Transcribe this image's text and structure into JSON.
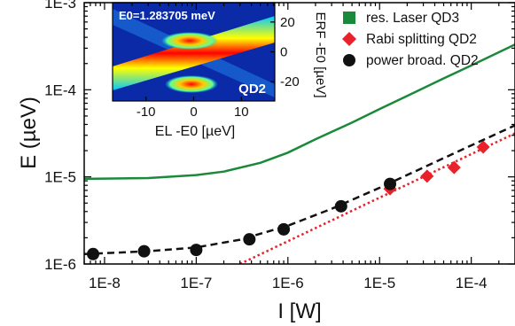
{
  "chart_data": {
    "type": "line",
    "xlabel": "I [W]",
    "ylabel": "E (µeV)",
    "x_scale": "log",
    "y_scale": "log",
    "xlim": [
      6e-09,
      0.0003
    ],
    "ylim": [
      1e-06,
      0.001
    ],
    "x_ticks": [
      1e-08,
      1e-07,
      1e-06,
      1e-05,
      0.0001
    ],
    "x_tick_labels": [
      "1E-8",
      "1E-7",
      "1E-6",
      "1E-5",
      "1E-4"
    ],
    "y_ticks": [
      1e-06,
      1e-05,
      0.0001,
      0.001
    ],
    "y_tick_labels": [
      "1E-6",
      "1E-5",
      "1E-4",
      "1E-3"
    ],
    "legend_position": "top-right",
    "series": [
      {
        "name": "res. Laser QD3",
        "kind": "line",
        "marker": "square",
        "color": "#1a8a3a",
        "points": [
          [
            6e-09,
            9.5e-06
          ],
          [
            1e-08,
            9.55e-06
          ],
          [
            3e-08,
            9.7e-06
          ],
          [
            1e-07,
            1.05e-05
          ],
          [
            2e-07,
            1.15e-05
          ],
          [
            5e-07,
            1.45e-05
          ],
          [
            1e-06,
            1.9e-05
          ],
          [
            2e-06,
            2.7e-05
          ],
          [
            5e-06,
            4.2e-05
          ],
          [
            1e-05,
            6e-05
          ],
          [
            2e-05,
            8.5e-05
          ],
          [
            5e-05,
            0.000135
          ],
          [
            0.0001,
            0.00019
          ],
          [
            0.0003,
            0.00033
          ]
        ]
      },
      {
        "name": "Rabi splitting QD2",
        "kind": "scatter",
        "marker": "diamond",
        "color": "#e8212a",
        "points": [
          [
            1.3e-05,
            7.3e-06
          ],
          [
            3.3e-05,
            1.02e-05
          ],
          [
            6.5e-05,
            1.28e-05
          ],
          [
            0.000135,
            2.2e-05
          ]
        ]
      },
      {
        "name": "power broad. QD2",
        "kind": "scatter",
        "marker": "circle",
        "color": "#111111",
        "points": [
          [
            7.5e-09,
            1.3e-06
          ],
          [
            2.7e-08,
            1.4e-06
          ],
          [
            1e-07,
            1.45e-06
          ],
          [
            3.8e-07,
            1.92e-06
          ],
          [
            9e-07,
            2.5e-06
          ],
          [
            3.8e-06,
            4.6e-06
          ],
          [
            1.3e-05,
            8.3e-06
          ]
        ]
      },
      {
        "name": "",
        "kind": "fit",
        "style": "dashed",
        "color": "#111111",
        "points": [
          [
            6e-09,
            1.3e-06
          ],
          [
            3e-08,
            1.4e-06
          ],
          [
            1e-07,
            1.55e-06
          ],
          [
            3e-07,
            1.9e-06
          ],
          [
            1e-06,
            2.75e-06
          ],
          [
            3e-06,
            4.3e-06
          ],
          [
            1e-05,
            7.5e-06
          ],
          [
            3e-05,
            1.28e-05
          ],
          [
            0.0001,
            2.3e-05
          ],
          [
            0.0003,
            3.9e-05
          ]
        ]
      },
      {
        "name": "",
        "kind": "fit",
        "style": "dotted",
        "color": "#e8212a",
        "points": [
          [
            3e-07,
            1e-06
          ],
          [
            0.0003,
            3.16e-05
          ]
        ]
      }
    ],
    "inset": {
      "type": "heatmap",
      "title": "E0=1.283705 meV",
      "label": "QD2",
      "xlabel": "EL -E0 [µeV]",
      "ylabel": "ERF -E0 [µeV]",
      "xlim": [
        -17,
        17
      ],
      "ylim": [
        -33,
        33
      ],
      "x_ticks": [
        -10,
        0,
        10
      ],
      "x_tick_labels": [
        "-10",
        "0",
        "10"
      ],
      "y_ticks": [
        20,
        0,
        -20
      ],
      "y_tick_labels": [
        "20",
        "0",
        "-20"
      ],
      "colormap": [
        "#000080",
        "#0050ff",
        "#00c8ff",
        "#60ff90",
        "#ffff00",
        "#ff8000",
        "#ff0000"
      ]
    }
  }
}
